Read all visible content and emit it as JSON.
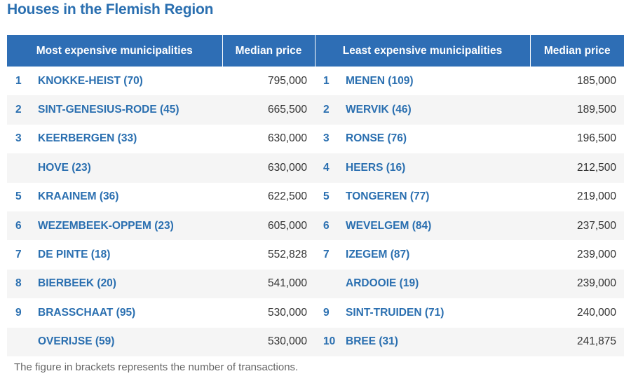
{
  "title": "Houses in the Flemish Region",
  "headers": {
    "most_expensive": "Most expensive municipalities",
    "median_price_1": "Median price",
    "least_expensive": "Least expensive municipalities",
    "median_price_2": "Median price"
  },
  "rows": [
    {
      "left_rank": "1",
      "left_name": "KNOKKE-HEIST (70)",
      "left_price": "795,000",
      "right_rank": "1",
      "right_name": "MENEN (109)",
      "right_price": "185,000"
    },
    {
      "left_rank": "2",
      "left_name": "SINT-GENESIUS-RODE (45)",
      "left_price": "665,500",
      "right_rank": "2",
      "right_name": "WERVIK (46)",
      "right_price": "189,500"
    },
    {
      "left_rank": "3",
      "left_name": "KEERBERGEN (33)",
      "left_price": "630,000",
      "right_rank": "3",
      "right_name": "RONSE (76)",
      "right_price": "196,500"
    },
    {
      "left_rank": "",
      "left_name": "HOVE (23)",
      "left_price": "630,000",
      "right_rank": "4",
      "right_name": "HEERS (16)",
      "right_price": "212,500"
    },
    {
      "left_rank": "5",
      "left_name": "KRAAINEM (36)",
      "left_price": "622,500",
      "right_rank": "5",
      "right_name": "TONGEREN (77)",
      "right_price": "219,000"
    },
    {
      "left_rank": "6",
      "left_name": "WEZEMBEEK-OPPEM (23)",
      "left_price": "605,000",
      "right_rank": "6",
      "right_name": "WEVELGEM (84)",
      "right_price": "237,500"
    },
    {
      "left_rank": "7",
      "left_name": "DE PINTE (18)",
      "left_price": "552,828",
      "right_rank": "7",
      "right_name": "IZEGEM (87)",
      "right_price": "239,000"
    },
    {
      "left_rank": "8",
      "left_name": "BIERBEEK (20)",
      "left_price": "541,000",
      "right_rank": "",
      "right_name": "ARDOOIE (19)",
      "right_price": "239,000"
    },
    {
      "left_rank": "9",
      "left_name": "BRASSCHAAT (95)",
      "left_price": "530,000",
      "right_rank": "9",
      "right_name": "SINT-TRUIDEN (71)",
      "right_price": "240,000"
    },
    {
      "left_rank": "",
      "left_name": "OVERIJSE (59)",
      "left_price": "530,000",
      "right_rank": "10",
      "right_name": "BREE (31)",
      "right_price": "241,875"
    }
  ],
  "footnote": "The figure in brackets represents the number of transactions.",
  "colors": {
    "header_bg": "#2e6eb5",
    "accent_text": "#2a6fb0",
    "stripe": "#f5f5f5"
  }
}
